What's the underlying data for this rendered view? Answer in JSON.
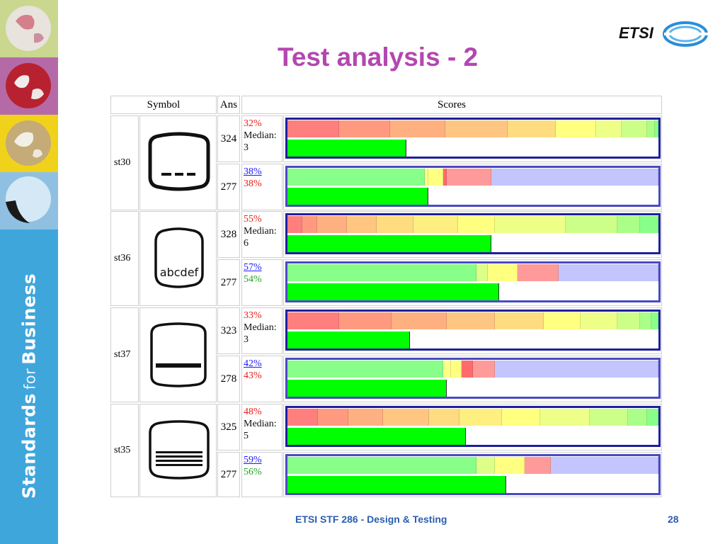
{
  "slide": {
    "title": "Test analysis - 2",
    "footer": "ETSI STF 286 - Design & Testing",
    "page_number": "28"
  },
  "sidebar": {
    "brand_word_1": "Standards",
    "brand_word_2": "for",
    "brand_word_3": "Business"
  },
  "logo": {
    "text": "ETSI"
  },
  "table": {
    "headers": {
      "symbol": "Symbol",
      "ans": "Ans",
      "scores": "Scores"
    },
    "groups": [
      {
        "id": "st30",
        "symbol_text": "",
        "rows": [
          {
            "ans": "324",
            "lines": [
              {
                "text": "32%",
                "style": "red"
              },
              {
                "text": "Median:",
                "style": "blk"
              },
              {
                "text": "3",
                "style": "blk"
              }
            ],
            "segments": [
              0.14,
              0.14,
              0.15,
              0.17,
              0.13,
              0.11,
              0.07,
              0.07,
              0.02,
              0.01
            ],
            "palette": "scale",
            "fill_fraction": 0.32
          },
          {
            "ans": "277",
            "lines": [
              {
                "text": "38%",
                "style": "blue"
              },
              {
                "text": "38%",
                "style": "red"
              }
            ],
            "segments": [
              0.37,
              0.01,
              0.04,
              0.01,
              0.12,
              0.45
            ],
            "palette": "answer",
            "fill_fraction": 0.38
          }
        ]
      },
      {
        "id": "st36",
        "symbol_text": "abcdef",
        "rows": [
          {
            "ans": "328",
            "lines": [
              {
                "text": "55%",
                "style": "red"
              },
              {
                "text": "Median:",
                "style": "blk"
              },
              {
                "text": "6",
                "style": "blk"
              }
            ],
            "segments": [
              0.04,
              0.04,
              0.08,
              0.08,
              0.1,
              0.12,
              0.1,
              0.19,
              0.14,
              0.06,
              0.05
            ],
            "palette": "scale",
            "fill_fraction": 0.55
          },
          {
            "ans": "277",
            "lines": [
              {
                "text": "57%",
                "style": "blue"
              },
              {
                "text": "54%",
                "style": "grn"
              }
            ],
            "segments": [
              0.51,
              0.03,
              0.08,
              0.11,
              0.27
            ],
            "palette": "answer",
            "fill_fraction": 0.57
          }
        ]
      },
      {
        "id": "st37",
        "symbol_text": "",
        "rows": [
          {
            "ans": "323",
            "lines": [
              {
                "text": "33%",
                "style": "red"
              },
              {
                "text": "Median:",
                "style": "blk"
              },
              {
                "text": "3",
                "style": "blk"
              }
            ],
            "segments": [
              0.14,
              0.14,
              0.15,
              0.13,
              0.13,
              0.1,
              0.1,
              0.06,
              0.03,
              0.02
            ],
            "palette": "scale",
            "fill_fraction": 0.33
          },
          {
            "ans": "278",
            "lines": [
              {
                "text": "42%",
                "style": "blue"
              },
              {
                "text": "43%",
                "style": "red"
              }
            ],
            "segments": [
              0.42,
              0.02,
              0.03,
              0.03,
              0.06,
              0.44
            ],
            "palette": "answer",
            "fill_fraction": 0.43
          }
        ]
      },
      {
        "id": "st35",
        "symbol_text": "",
        "rows": [
          {
            "ans": "325",
            "lines": [
              {
                "text": "48%",
                "style": "red"
              },
              {
                "text": "Median:",
                "style": "blk"
              },
              {
                "text": "5",
                "style": "blk"
              }
            ],
            "segments": [
              0.08,
              0.08,
              0.09,
              0.12,
              0.08,
              0.11,
              0.1,
              0.13,
              0.1,
              0.05,
              0.03
            ],
            "palette": "scale",
            "fill_fraction": 0.48
          },
          {
            "ans": "277",
            "lines": [
              {
                "text": "59%",
                "style": "blue"
              },
              {
                "text": "56%",
                "style": "grn"
              }
            ],
            "segments": [
              0.51,
              0.05,
              0.08,
              0.07,
              0.29
            ],
            "palette": "answer",
            "fill_fraction": 0.59
          }
        ]
      }
    ]
  },
  "colors": {
    "title": "#b347b1",
    "footer": "#2a5db0",
    "sidebar": "#3fa6dc",
    "bar_fill": "#00ff00",
    "bar_border": "#1f1f9e",
    "scale_palette": [
      "#ff7f7f",
      "#ff9a80",
      "#ffb080",
      "#ffc682",
      "#ffdc80",
      "#ffee80",
      "#ffff80",
      "#eeff88",
      "#ccff88",
      "#aaff88",
      "#88ff88"
    ],
    "answer_palette_5": [
      "#88ff88",
      "#ddff88",
      "#ffff80",
      "#ff9a9a",
      "#c4c4ff"
    ],
    "answer_palette_6": [
      "#88ff88",
      "#ffff88",
      "#ffff80",
      "#ff6b6b",
      "#ff9a9a",
      "#c4c4ff"
    ]
  }
}
